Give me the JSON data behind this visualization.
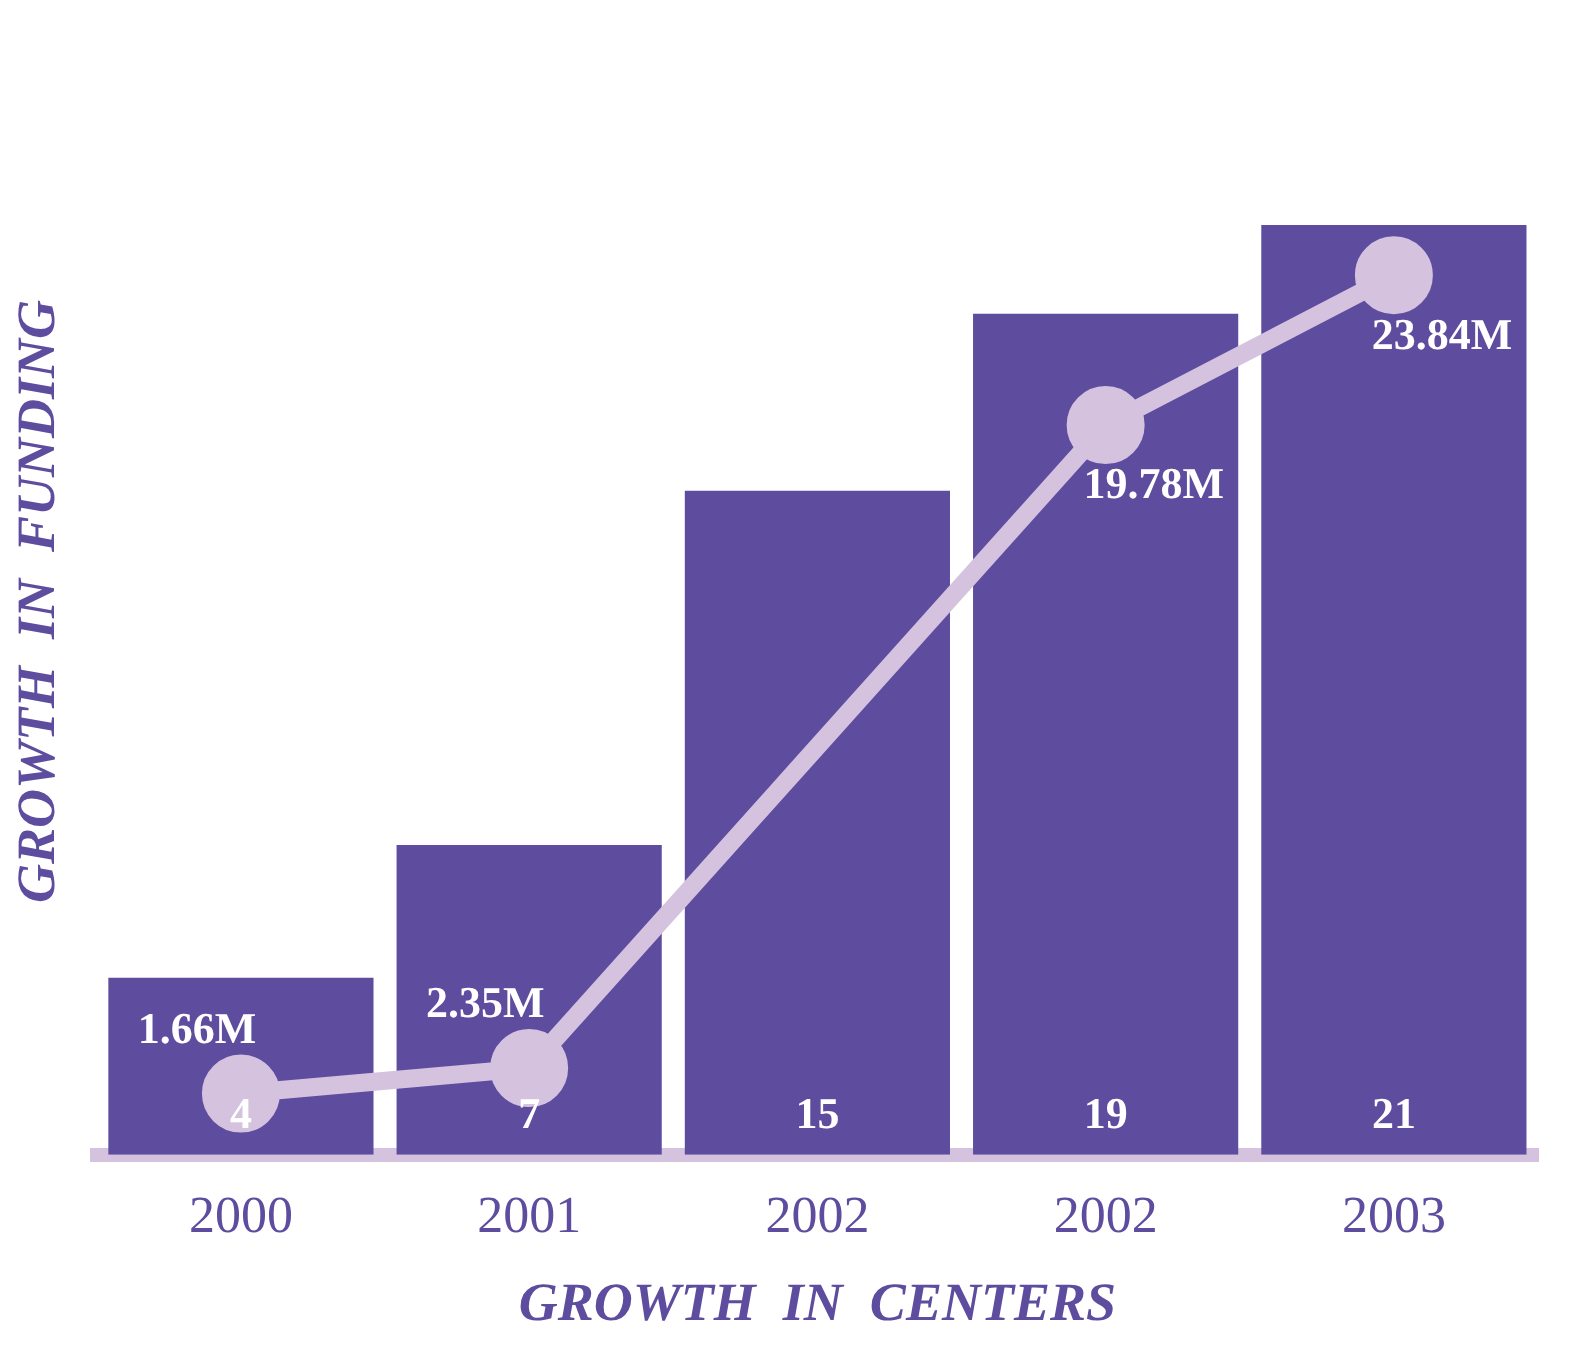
{
  "chart_data": {
    "type": "bar",
    "xlabel": "GROWTH  IN  CENTERS",
    "ylabel": "GROWTH  IN  FUNDING",
    "categories": [
      "2000",
      "2001",
      "2002",
      "2002",
      "2003"
    ],
    "series": [
      {
        "color": "#5e4c9e",
        "values": [
          4,
          7,
          15,
          19,
          21
        ],
        "value_labels": [
          "4",
          "7",
          "15",
          "19",
          "21"
        ]
      },
      {
        "type": "line",
        "axis": "y2",
        "color": "#d4c2df",
        "values": [
          1.66,
          2.35,
          null,
          19.78,
          23.84
        ],
        "value_labels": [
          "1.66M",
          "2.35M",
          null,
          "19.78M",
          "23.84M"
        ]
      }
    ],
    "tick_labels": "x",
    "marker": "circle",
    "line_style": "solid",
    "grid": false,
    "legend": false
  }
}
